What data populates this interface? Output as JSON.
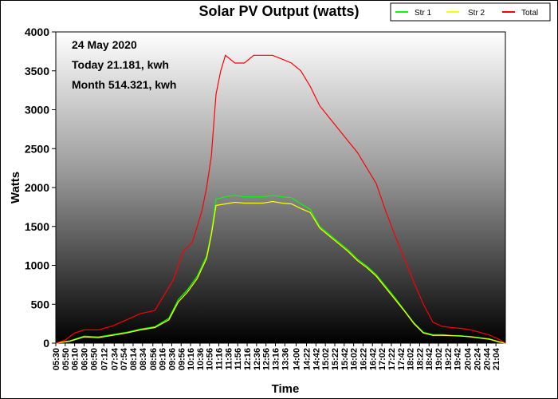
{
  "chart_data": {
    "type": "line",
    "title": "Solar PV Output (watts)",
    "xlabel": "Time",
    "ylabel": "Watts",
    "ylim": [
      0,
      4000
    ],
    "yticks": [
      "0",
      "500",
      "1000",
      "1500",
      "2000",
      "2500",
      "3000",
      "3500",
      "4000"
    ],
    "xlim": [
      "05:30",
      "21:24"
    ],
    "xticks": [
      "05:30",
      "05:50",
      "06:10",
      "06:30",
      "06:50",
      "07:12",
      "07:34",
      "07:54",
      "08:14",
      "08:34",
      "08:56",
      "09:16",
      "09:36",
      "09:56",
      "10:16",
      "10:36",
      "10:56",
      "11:16",
      "11:36",
      "11:56",
      "12:16",
      "12:36",
      "12:56",
      "13:16",
      "13:36",
      "14:00",
      "14:22",
      "14:42",
      "15:02",
      "15:22",
      "15:42",
      "16:02",
      "16:22",
      "16:42",
      "17:02",
      "17:22",
      "17:42",
      "18:02",
      "18:22",
      "18:42",
      "19:02",
      "19:22",
      "19:42",
      "20:04",
      "20:24",
      "20:44",
      "21:04"
    ],
    "annotations": [
      "24 May 2020",
      "Today 21.181, kwh",
      "Month 514.321, kwh"
    ],
    "legend_position": "top-right",
    "series": [
      {
        "name": "Str 1",
        "color": "#00ff00",
        "x": [
          "05:30",
          "06:00",
          "06:30",
          "07:00",
          "07:30",
          "08:00",
          "08:30",
          "09:00",
          "09:30",
          "09:50",
          "10:10",
          "10:30",
          "10:50",
          "11:00",
          "11:10",
          "11:30",
          "11:50",
          "12:10",
          "12:30",
          "12:50",
          "13:10",
          "13:30",
          "13:50",
          "14:10",
          "14:30",
          "14:50",
          "15:10",
          "15:30",
          "15:50",
          "16:10",
          "16:30",
          "16:50",
          "17:10",
          "17:30",
          "17:50",
          "18:10",
          "18:30",
          "18:50",
          "19:10",
          "19:30",
          "19:50",
          "20:10",
          "20:30",
          "20:50",
          "21:10",
          "21:24"
        ],
        "y": [
          0,
          30,
          90,
          80,
          110,
          140,
          180,
          210,
          320,
          560,
          690,
          860,
          1120,
          1420,
          1850,
          1880,
          1900,
          1880,
          1880,
          1880,
          1900,
          1880,
          1870,
          1790,
          1720,
          1500,
          1400,
          1300,
          1200,
          1080,
          990,
          880,
          730,
          580,
          420,
          260,
          140,
          110,
          110,
          100,
          95,
          85,
          70,
          55,
          20,
          0
        ]
      },
      {
        "name": "Str 2",
        "color": "#ffff00",
        "x": [
          "05:30",
          "06:00",
          "06:30",
          "07:00",
          "07:30",
          "08:00",
          "08:30",
          "09:00",
          "09:30",
          "09:50",
          "10:10",
          "10:30",
          "10:50",
          "11:00",
          "11:10",
          "11:30",
          "11:50",
          "12:10",
          "12:30",
          "12:50",
          "13:10",
          "13:30",
          "13:50",
          "14:10",
          "14:30",
          "14:50",
          "15:10",
          "15:30",
          "15:50",
          "16:10",
          "16:30",
          "16:50",
          "17:10",
          "17:30",
          "17:50",
          "18:10",
          "18:30",
          "18:50",
          "19:10",
          "19:30",
          "19:50",
          "20:10",
          "20:30",
          "20:50",
          "21:10",
          "21:24"
        ],
        "y": [
          0,
          25,
          80,
          70,
          100,
          130,
          170,
          200,
          300,
          530,
          660,
          830,
          1090,
          1390,
          1770,
          1790,
          1810,
          1800,
          1800,
          1800,
          1820,
          1800,
          1790,
          1730,
          1680,
          1480,
          1380,
          1280,
          1180,
          1060,
          970,
          860,
          710,
          560,
          410,
          250,
          130,
          100,
          100,
          95,
          90,
          80,
          65,
          50,
          15,
          0
        ]
      },
      {
        "name": "Total",
        "color": "#ff0000",
        "x": [
          "05:30",
          "05:50",
          "06:10",
          "06:30",
          "07:00",
          "07:30",
          "08:00",
          "08:30",
          "09:00",
          "09:20",
          "09:40",
          "10:00",
          "10:20",
          "10:40",
          "10:50",
          "11:00",
          "11:10",
          "11:20",
          "11:30",
          "11:50",
          "12:10",
          "12:30",
          "12:50",
          "13:10",
          "13:30",
          "13:50",
          "14:10",
          "14:30",
          "14:50",
          "15:10",
          "15:30",
          "15:50",
          "16:10",
          "16:30",
          "16:50",
          "17:10",
          "17:30",
          "17:50",
          "18:10",
          "18:30",
          "18:50",
          "19:10",
          "19:30",
          "19:50",
          "20:10",
          "20:30",
          "20:50",
          "21:10",
          "21:24"
        ],
        "y": [
          0,
          40,
          130,
          170,
          170,
          220,
          300,
          380,
          420,
          620,
          820,
          1180,
          1300,
          1700,
          2000,
          2400,
          3200,
          3500,
          3700,
          3600,
          3600,
          3700,
          3700,
          3700,
          3650,
          3600,
          3500,
          3300,
          3050,
          2900,
          2750,
          2600,
          2450,
          2250,
          2050,
          1700,
          1380,
          1080,
          780,
          500,
          270,
          215,
          200,
          190,
          170,
          140,
          105,
          50,
          0
        ]
      }
    ]
  }
}
